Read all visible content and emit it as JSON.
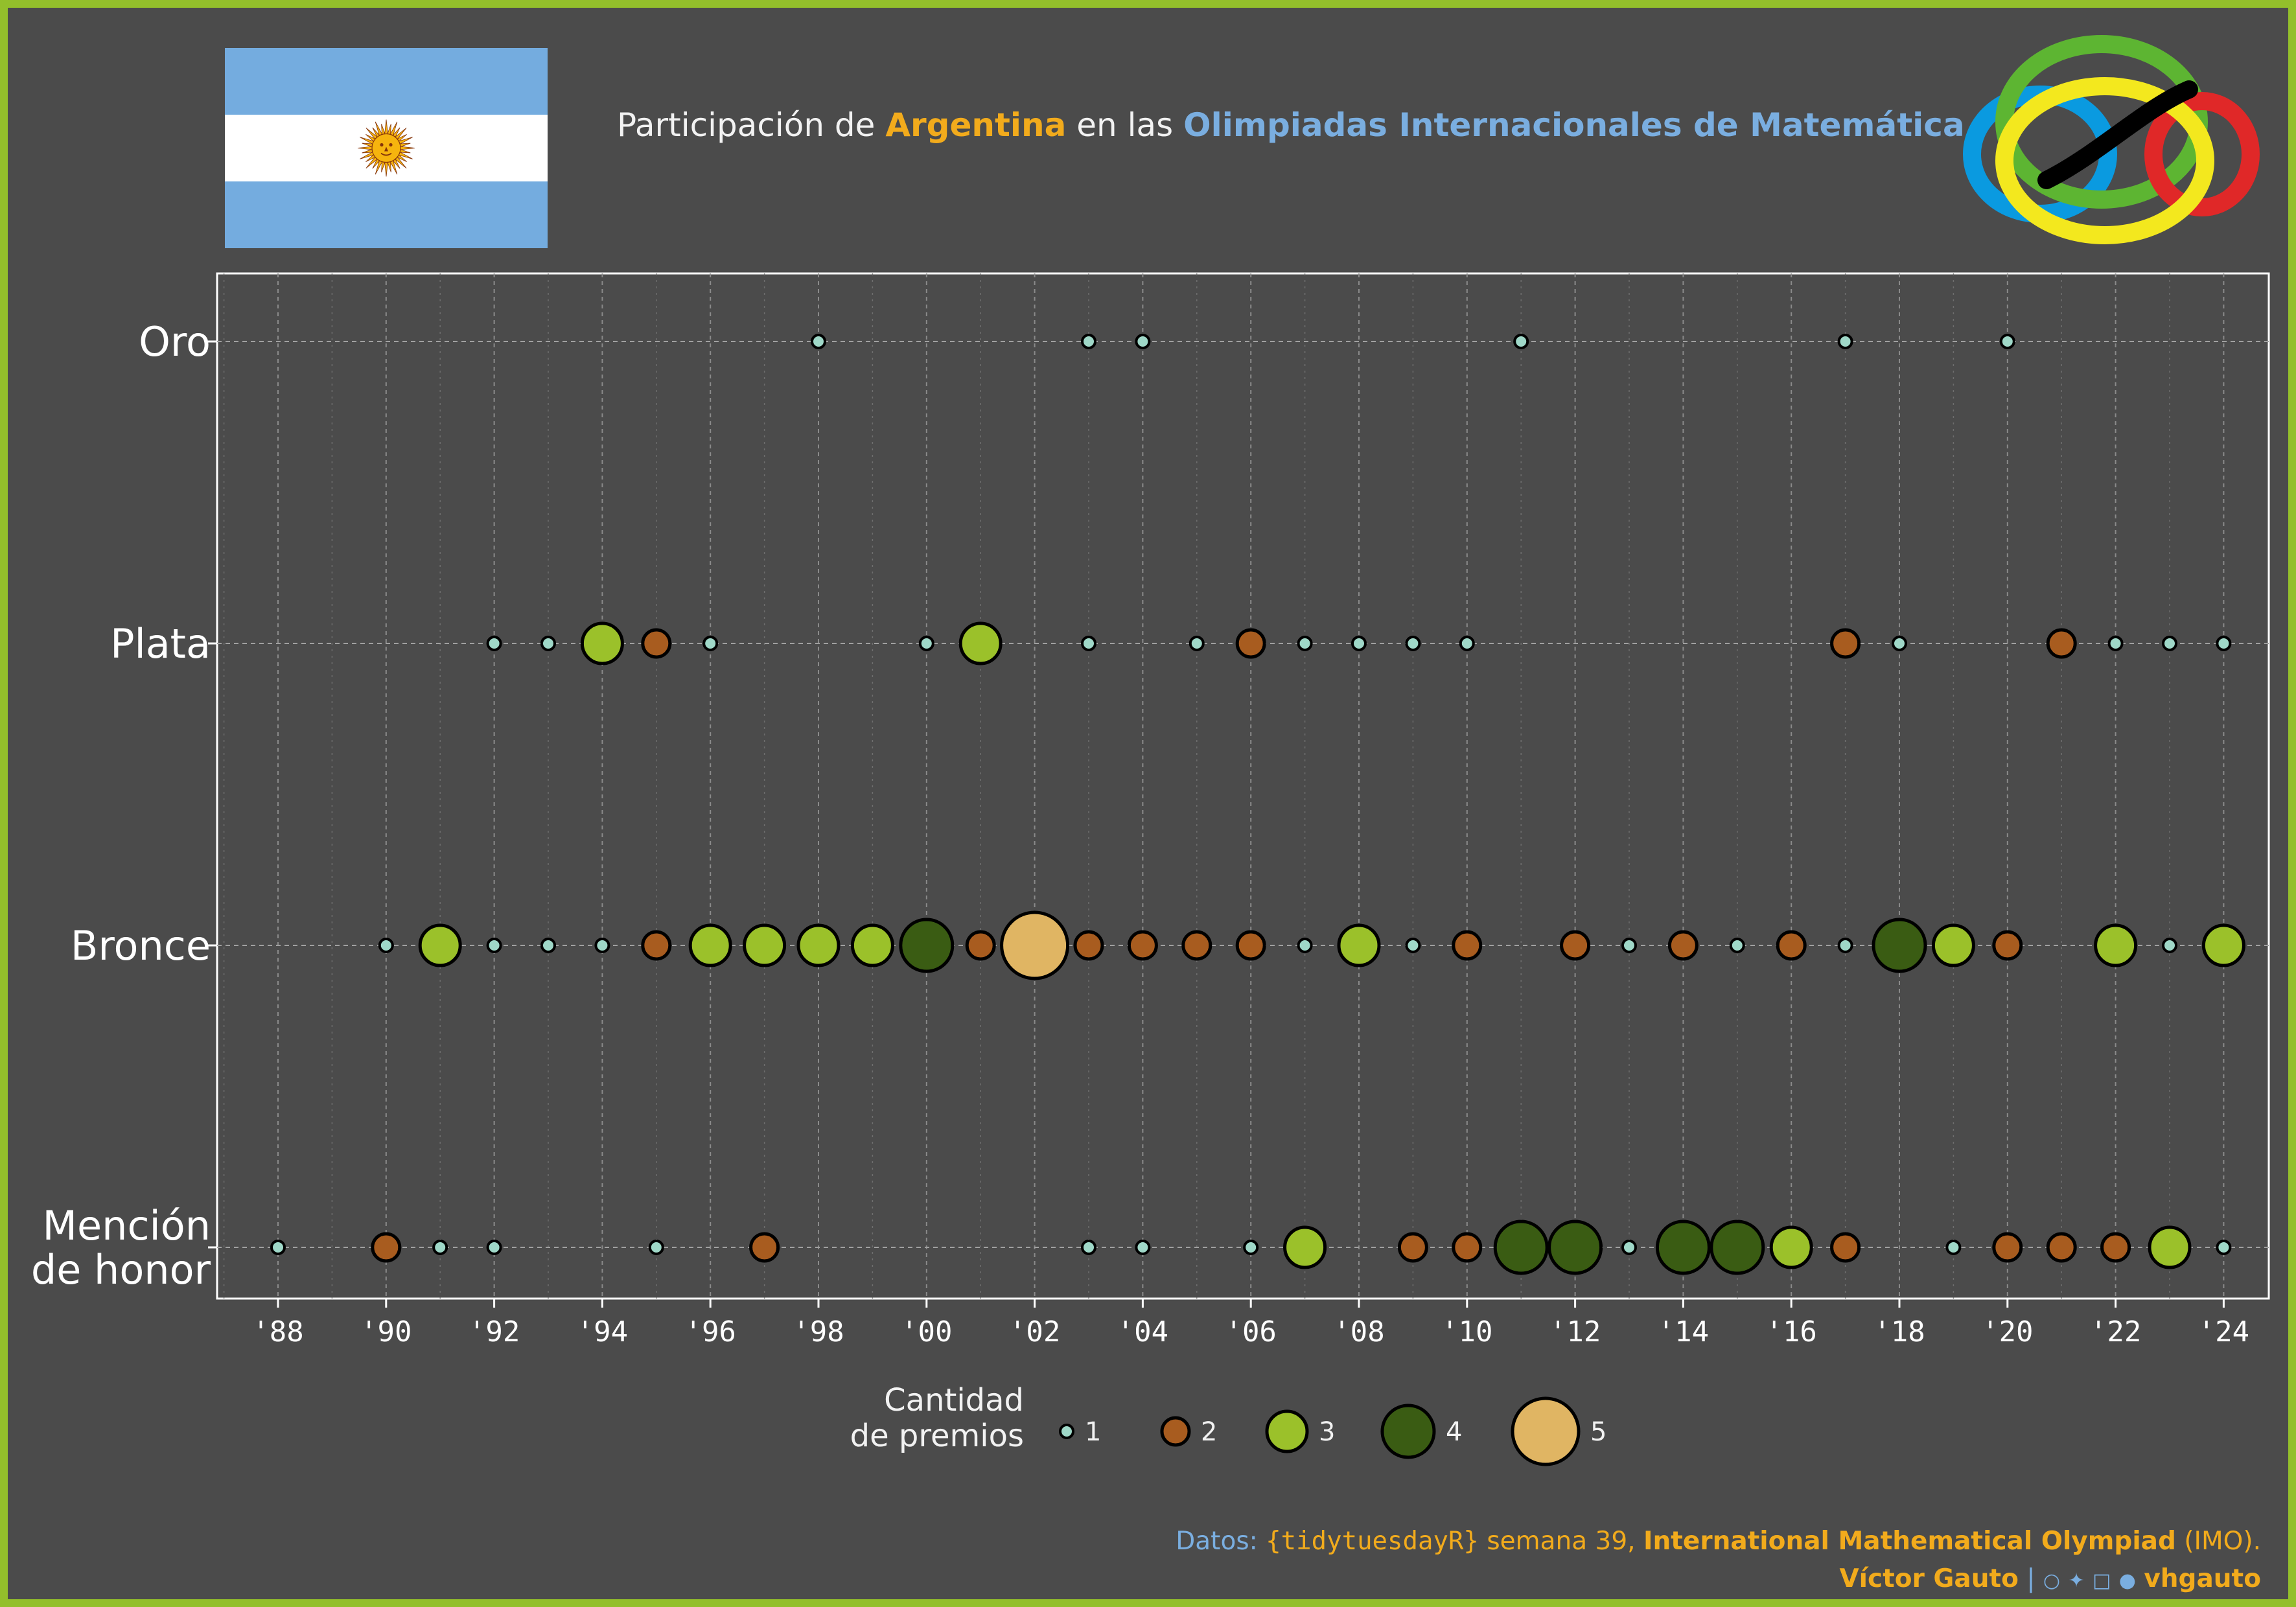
{
  "title": {
    "pre": "Participación de ",
    "country": "Argentina",
    "mid": " en las ",
    "event": "Olimpiadas Internacionales de Matemática",
    "post": "."
  },
  "legend": {
    "title_line1": "Cantidad",
    "title_line2": "de premios"
  },
  "footer": {
    "source_label": "Datos: ",
    "package": "{tidytuesdayR}",
    "week": " semana 39, ",
    "dataset": "International Mathematical Olympiad",
    "dataset_abbr": " (IMO).",
    "author": "Víctor Gauto",
    "separator": " | ",
    "handle": "vhgauto"
  },
  "colors": {
    "background": "#4b4b4b",
    "frame": "#93bf2b",
    "title_country": "#f2ab1c",
    "title_event": "#7aaee0",
    "size_1": "#9fd8c8",
    "size_2": "#a85c1f",
    "size_3": "#9bc12a",
    "size_4": "#3a5c13",
    "size_5": "#e0b563",
    "flag_blue": "#74acdf",
    "flag_white": "#ffffff",
    "sun": "#f6b40e"
  },
  "chart_data": {
    "type": "scatter",
    "title": "Participación de Argentina en las Olimpiadas Internacionales de Matemática.",
    "xlabel": "",
    "ylabel": "",
    "x_unit": "year",
    "xlim": [
      1987,
      2025
    ],
    "x_ticks": [
      1988,
      1990,
      1992,
      1994,
      1996,
      1998,
      2000,
      2002,
      2004,
      2006,
      2008,
      2010,
      2012,
      2014,
      2016,
      2018,
      2020,
      2022,
      2024
    ],
    "x_tick_labels": [
      "'88",
      "'90",
      "'92",
      "'94",
      "'96",
      "'98",
      "'00",
      "'02",
      "'04",
      "'06",
      "'08",
      "'10",
      "'12",
      "'14",
      "'16",
      "'18",
      "'20",
      "'22",
      "'24"
    ],
    "categories": [
      "Oro",
      "Plata",
      "Bronce",
      "Mención de honor"
    ],
    "category_labels": [
      [
        "Oro"
      ],
      [
        "Plata"
      ],
      [
        "Bronce"
      ],
      [
        "Mención",
        "de honor"
      ]
    ],
    "size_legend": [
      1,
      2,
      3,
      4,
      5
    ],
    "grid": true,
    "legend_position": "bottom",
    "series": [
      {
        "name": "Oro",
        "points": [
          [
            1998,
            1
          ],
          [
            2003,
            1
          ],
          [
            2004,
            1
          ],
          [
            2011,
            1
          ],
          [
            2017,
            1
          ],
          [
            2020,
            1
          ]
        ]
      },
      {
        "name": "Plata",
        "points": [
          [
            1992,
            1
          ],
          [
            1993,
            1
          ],
          [
            1994,
            3
          ],
          [
            1995,
            2
          ],
          [
            1996,
            1
          ],
          [
            2000,
            1
          ],
          [
            2001,
            3
          ],
          [
            2003,
            1
          ],
          [
            2005,
            1
          ],
          [
            2006,
            2
          ],
          [
            2007,
            1
          ],
          [
            2008,
            1
          ],
          [
            2009,
            1
          ],
          [
            2010,
            1
          ],
          [
            2017,
            2
          ],
          [
            2018,
            1
          ],
          [
            2021,
            2
          ],
          [
            2022,
            1
          ],
          [
            2023,
            1
          ],
          [
            2024,
            1
          ]
        ]
      },
      {
        "name": "Bronce",
        "points": [
          [
            1990,
            1
          ],
          [
            1991,
            3
          ],
          [
            1992,
            1
          ],
          [
            1993,
            1
          ],
          [
            1994,
            1
          ],
          [
            1995,
            2
          ],
          [
            1996,
            3
          ],
          [
            1997,
            3
          ],
          [
            1998,
            3
          ],
          [
            1999,
            3
          ],
          [
            2000,
            4
          ],
          [
            2001,
            2
          ],
          [
            2002,
            5
          ],
          [
            2003,
            2
          ],
          [
            2004,
            2
          ],
          [
            2005,
            2
          ],
          [
            2006,
            2
          ],
          [
            2007,
            1
          ],
          [
            2008,
            3
          ],
          [
            2009,
            1
          ],
          [
            2010,
            2
          ],
          [
            2012,
            2
          ],
          [
            2013,
            1
          ],
          [
            2014,
            2
          ],
          [
            2015,
            1
          ],
          [
            2016,
            2
          ],
          [
            2017,
            1
          ],
          [
            2018,
            4
          ],
          [
            2019,
            3
          ],
          [
            2020,
            2
          ],
          [
            2022,
            3
          ],
          [
            2023,
            1
          ],
          [
            2024,
            3
          ]
        ]
      },
      {
        "name": "Mención de honor",
        "points": [
          [
            1988,
            1
          ],
          [
            1990,
            2
          ],
          [
            1991,
            1
          ],
          [
            1992,
            1
          ],
          [
            1995,
            1
          ],
          [
            1997,
            2
          ],
          [
            2003,
            1
          ],
          [
            2004,
            1
          ],
          [
            2006,
            1
          ],
          [
            2007,
            3
          ],
          [
            2009,
            2
          ],
          [
            2010,
            2
          ],
          [
            2011,
            4
          ],
          [
            2012,
            4
          ],
          [
            2013,
            1
          ],
          [
            2014,
            4
          ],
          [
            2015,
            4
          ],
          [
            2016,
            3
          ],
          [
            2017,
            2
          ],
          [
            2019,
            1
          ],
          [
            2020,
            2
          ],
          [
            2021,
            2
          ],
          [
            2022,
            2
          ],
          [
            2023,
            3
          ],
          [
            2024,
            1
          ]
        ]
      }
    ]
  }
}
